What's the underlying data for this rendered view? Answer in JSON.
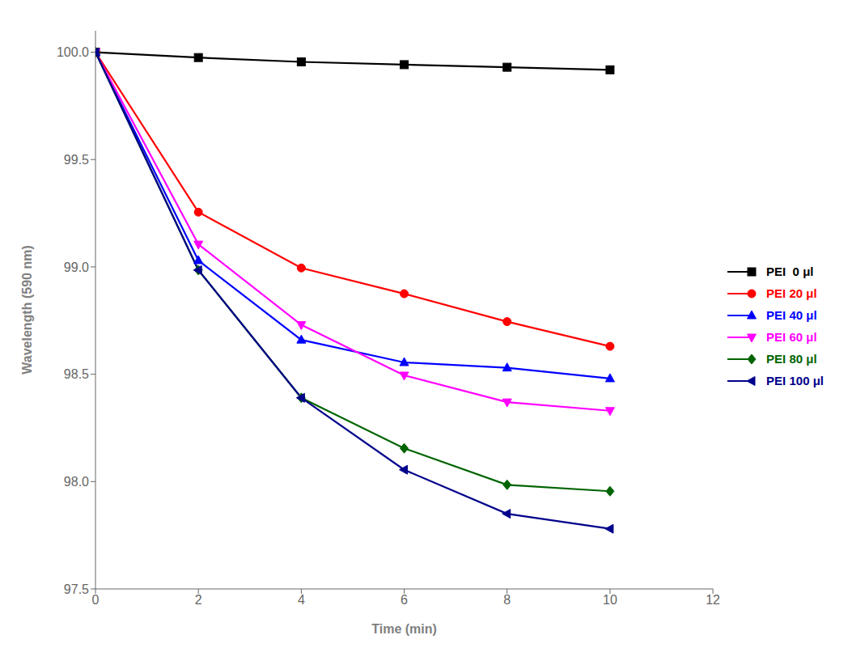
{
  "chart_data": {
    "type": "line",
    "xlabel": "Time (min)",
    "ylabel": "Wavelength (590 nm)",
    "xlim": [
      0,
      12
    ],
    "xticks": [
      0,
      2,
      4,
      6,
      8,
      10,
      12
    ],
    "ylim": [
      97.5,
      100.1
    ],
    "yticks": [
      97.5,
      {
        "value": 98,
        "label": "98.0"
      },
      98.5,
      {
        "value": 99,
        "label": "99.0"
      },
      99.5,
      {
        "value": 100,
        "label": "100.0"
      }
    ],
    "grid": false,
    "legend": "right",
    "x": [
      0,
      2,
      4,
      6,
      8,
      10
    ],
    "series": [
      {
        "name": "PEI  0 μl",
        "color": "#000000",
        "marker": "square",
        "values": [
          100.0,
          99.975,
          99.955,
          99.942,
          99.93,
          99.918
        ]
      },
      {
        "name": "PEI 20 μl",
        "color": "#ff0000",
        "marker": "circle",
        "values": [
          100.0,
          99.255,
          98.995,
          98.875,
          98.745,
          98.63
        ]
      },
      {
        "name": "PEI 40 μl",
        "color": "#0000ff",
        "marker": "triangle_up",
        "values": [
          100.0,
          99.03,
          98.66,
          98.555,
          98.53,
          98.48
        ]
      },
      {
        "name": "PEI 60 μl",
        "color": "#ff00ff",
        "marker": "triangle_down",
        "values": [
          100.0,
          99.105,
          98.73,
          98.495,
          98.37,
          98.33
        ]
      },
      {
        "name": "PEI 80 μl",
        "color": "#006400",
        "marker": "diamond",
        "values": [
          100.0,
          98.985,
          98.39,
          98.155,
          97.985,
          97.955
        ]
      },
      {
        "name": "PEI 100 μl",
        "color": "#00008b",
        "marker": "triangle_left",
        "values": [
          100.0,
          98.985,
          98.39,
          98.055,
          97.85,
          97.78
        ]
      }
    ]
  }
}
